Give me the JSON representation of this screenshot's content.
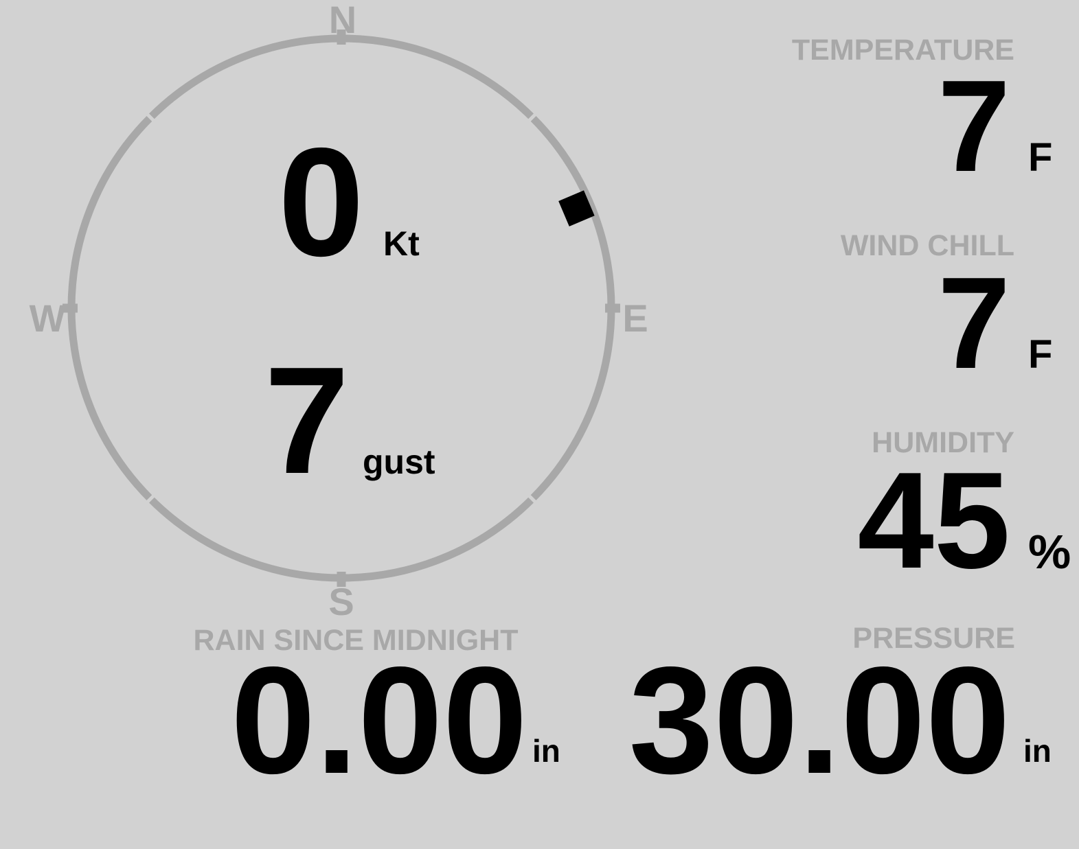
{
  "colors": {
    "bg": "#d2d2d2",
    "muted": "#a8a8a8",
    "ink": "#000000"
  },
  "wind": {
    "speed_value": "0",
    "speed_unit": "Kt",
    "gust_value": "7",
    "gust_label": "gust",
    "direction_deg": 67,
    "compass": {
      "n": "N",
      "e": "E",
      "s": "S",
      "w": "W"
    }
  },
  "panels": {
    "temperature": {
      "label": "TEMPERATURE",
      "value": "7",
      "unit": "F"
    },
    "wind_chill": {
      "label": "WIND CHILL",
      "value": "7",
      "unit": "F"
    },
    "humidity": {
      "label": "HUMIDITY",
      "value": "45",
      "unit": "%"
    },
    "rain_since_midnight": {
      "label": "RAIN SINCE MIDNIGHT",
      "value": "0.00",
      "unit": "in"
    },
    "pressure": {
      "label": "PRESSURE",
      "value": "30.00",
      "unit": "in"
    }
  }
}
